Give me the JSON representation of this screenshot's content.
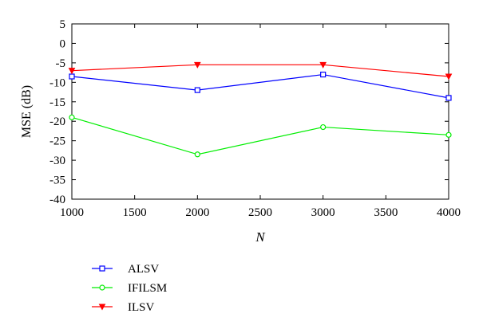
{
  "chart_data": {
    "type": "line",
    "x": [
      1000,
      2000,
      3000,
      4000
    ],
    "xlabel": "N",
    "ylabel": "MSE (dB)",
    "xlim": [
      1000,
      4000
    ],
    "ylim": [
      -40,
      5
    ],
    "xticks": [
      1000,
      1500,
      2000,
      2500,
      3000,
      3500,
      4000
    ],
    "yticks": [
      5,
      0,
      -5,
      -10,
      -15,
      -20,
      -25,
      -30,
      -35,
      -40
    ],
    "grid": false,
    "legend_position": "below plot, left",
    "series": [
      {
        "name": "ALSV",
        "color": "#0000ff",
        "marker": "square",
        "values": [
          -8.5,
          -12,
          -8,
          -14
        ]
      },
      {
        "name": "IFILSM",
        "color": "#00ee00",
        "marker": "circle",
        "values": [
          -19,
          -28.5,
          -21.5,
          -23.5
        ]
      },
      {
        "name": "ILSV",
        "color": "#ff0000",
        "marker": "triangle-down",
        "values": [
          -7,
          -5.5,
          -5.5,
          -8.5
        ]
      }
    ]
  }
}
